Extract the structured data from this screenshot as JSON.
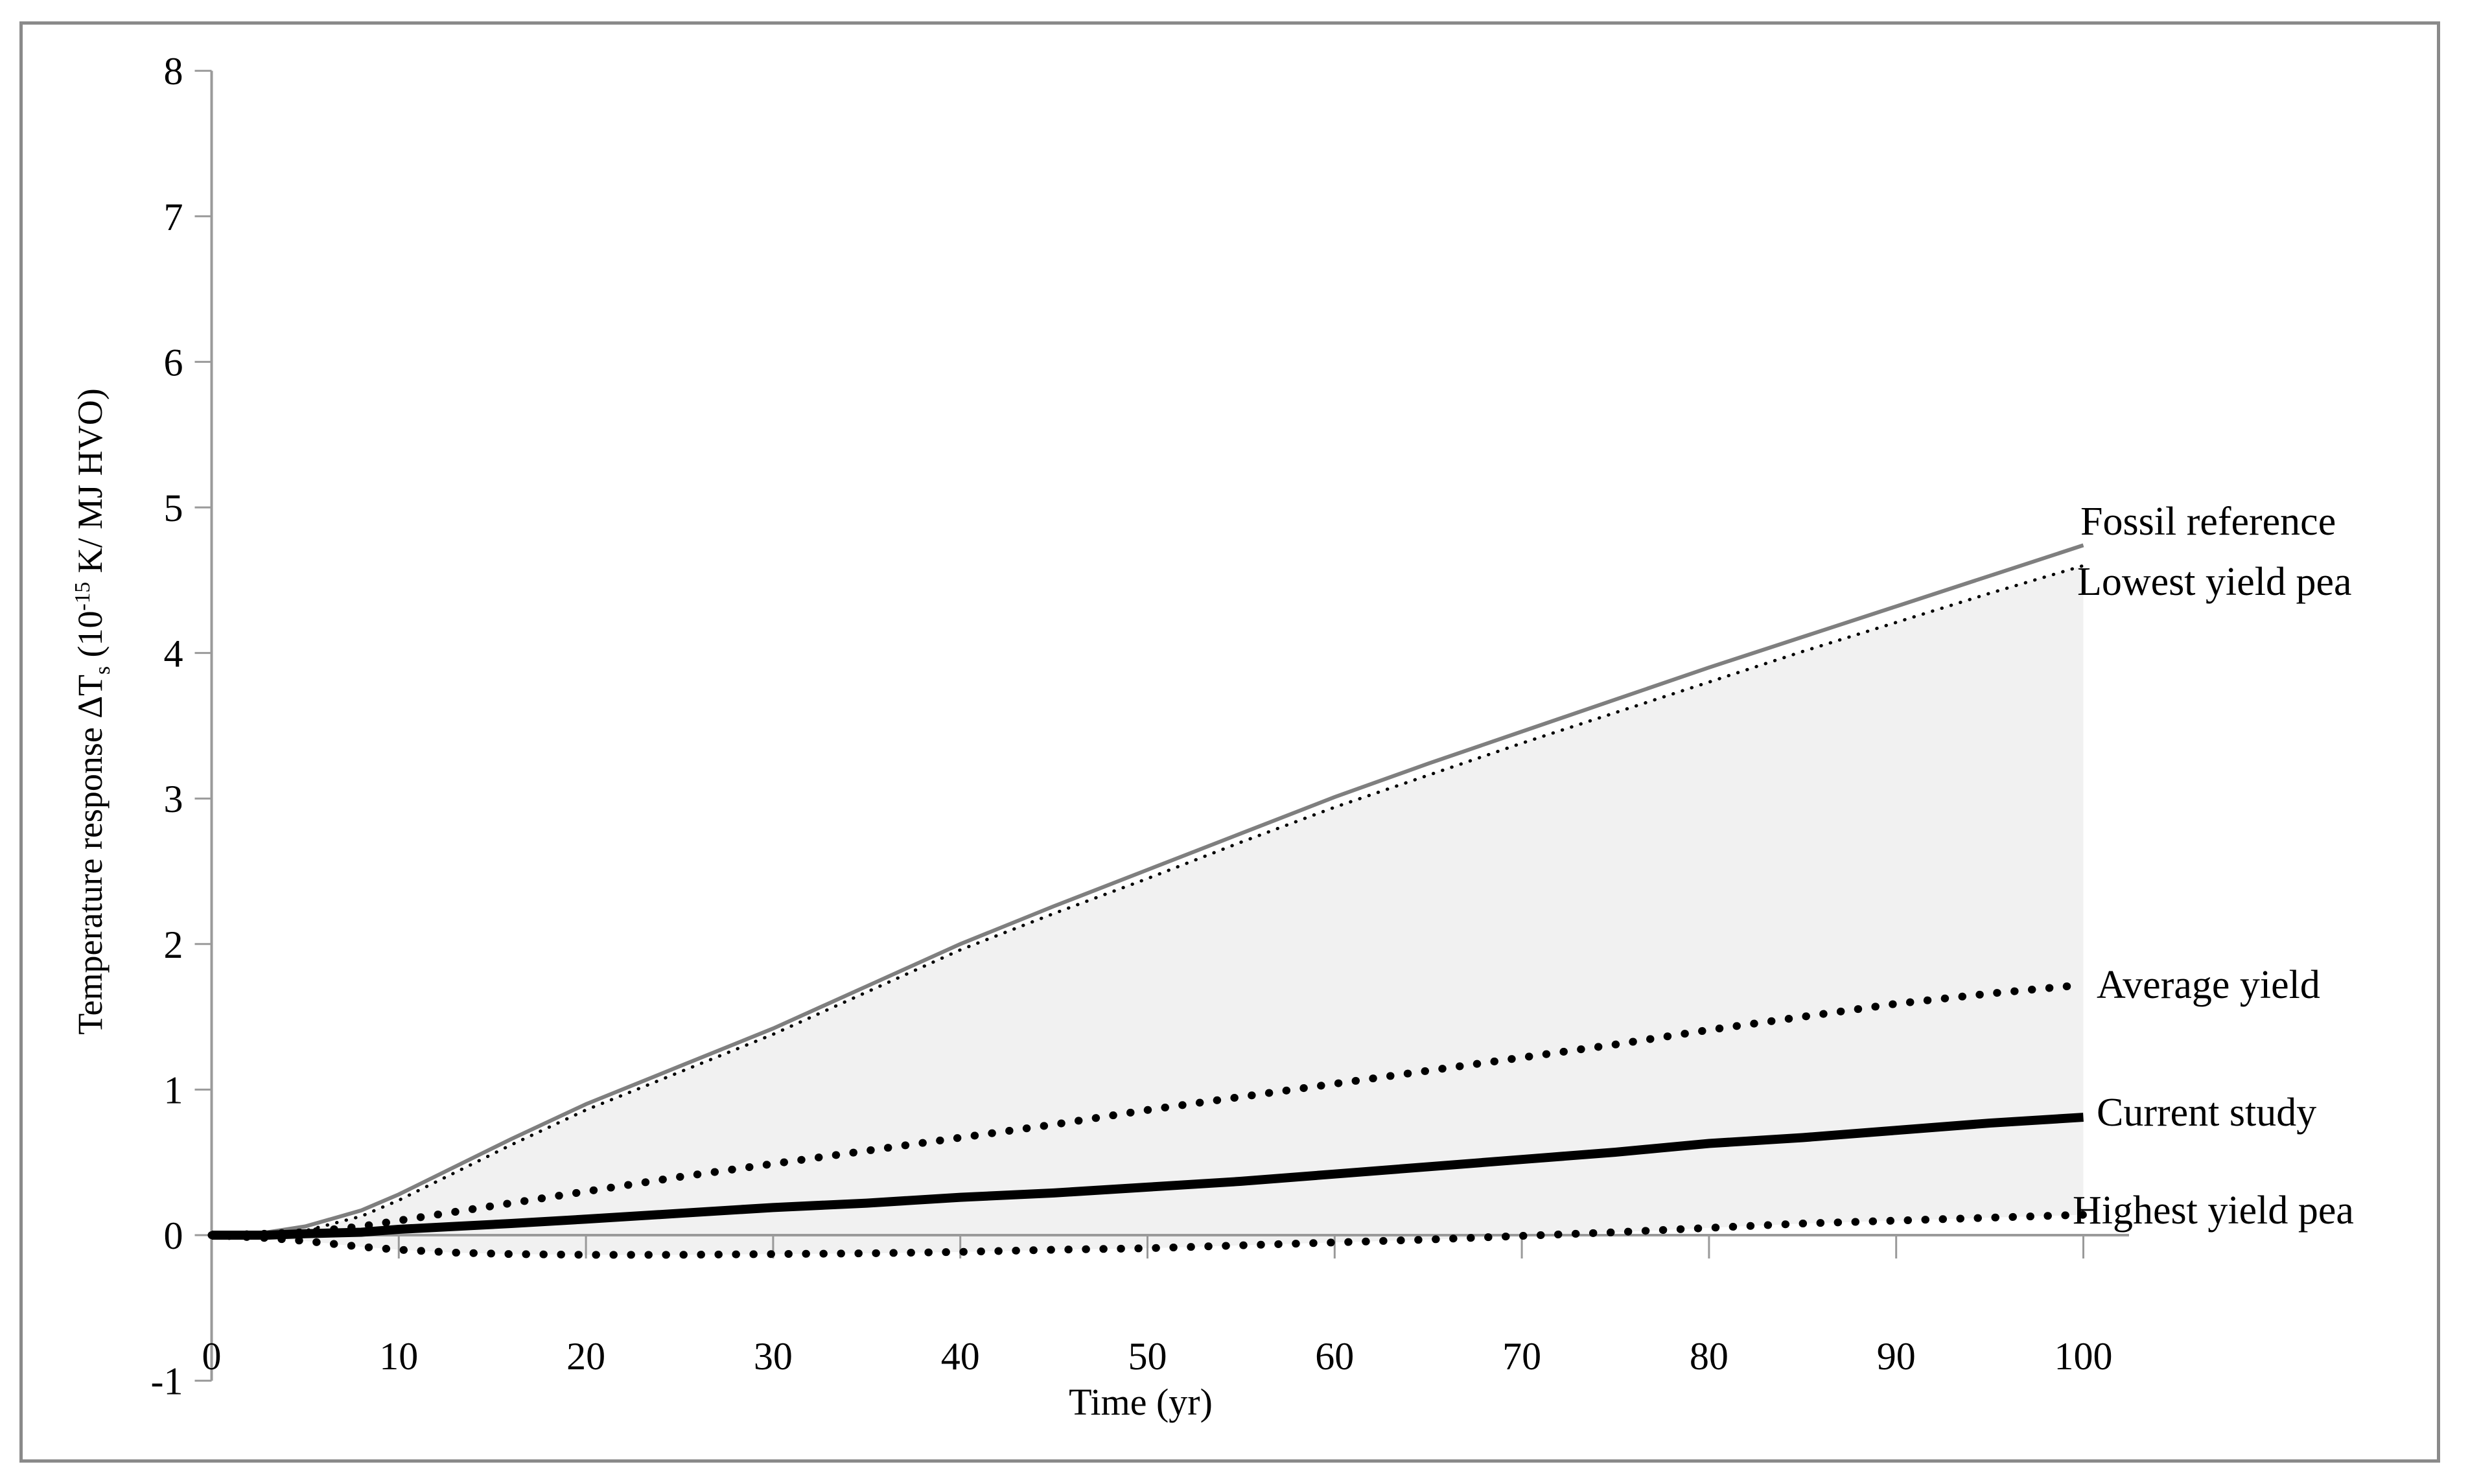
{
  "figure": {
    "border_color": "#8a8a8a",
    "background": "#ffffff"
  },
  "chart_data": {
    "type": "line",
    "title": "",
    "xlabel": "Time (yr)",
    "ylabel": "Temperature response ΔTs (10-15 K/ MJ HVO)",
    "ylabel_parts": {
      "pre": "Temperature response ΔT",
      "sub": "s",
      "mid": " (10",
      "sup": "-15",
      "post": " K/ MJ HVO)"
    },
    "xlim": [
      0,
      100
    ],
    "ylim": [
      -1,
      8
    ],
    "x_ticks": [
      0,
      10,
      20,
      30,
      40,
      50,
      60,
      70,
      80,
      90,
      100
    ],
    "y_ticks": [
      -1,
      0,
      1,
      2,
      3,
      4,
      5,
      6,
      7,
      8
    ],
    "grid": "off",
    "legend_position": "right-end-of-lines",
    "axis_color": "#9a9a9a",
    "shaded_band": {
      "upper": "Lowest yield pea",
      "lower": "Highest yield pea",
      "color": "#f1f1f1"
    },
    "x_common": [
      0,
      3,
      5,
      8,
      10,
      13,
      16,
      20,
      25,
      30,
      35,
      40,
      45,
      50,
      55,
      60,
      65,
      70,
      75,
      80,
      85,
      90,
      95,
      100
    ],
    "series": [
      {
        "name": "Fossil reference",
        "style": "solid",
        "color": "#7f7f7f",
        "width": 6,
        "dash": "solid",
        "x": [
          0,
          3,
          5,
          8,
          10,
          13,
          16,
          20,
          25,
          30,
          35,
          40,
          45,
          50,
          55,
          60,
          65,
          70,
          75,
          80,
          85,
          90,
          95,
          100
        ],
        "y": [
          0,
          0.02,
          0.06,
          0.17,
          0.28,
          0.47,
          0.66,
          0.9,
          1.16,
          1.42,
          1.71,
          2.0,
          2.26,
          2.51,
          2.76,
          3.01,
          3.24,
          3.46,
          3.68,
          3.9,
          4.11,
          4.32,
          4.53,
          4.74
        ]
      },
      {
        "name": "Lowest yield pea",
        "style": "dotted-fine",
        "color": "#000000",
        "width": 5,
        "dash": "dot-fine",
        "x": [
          0,
          3,
          5,
          8,
          10,
          13,
          16,
          20,
          25,
          30,
          35,
          40,
          45,
          50,
          55,
          60,
          65,
          70,
          75,
          80,
          85,
          90,
          95,
          100
        ],
        "y": [
          0,
          0.0,
          0.03,
          0.13,
          0.24,
          0.43,
          0.62,
          0.86,
          1.12,
          1.38,
          1.67,
          1.96,
          2.21,
          2.45,
          2.7,
          2.94,
          3.16,
          3.38,
          3.59,
          3.8,
          4.01,
          4.21,
          4.41,
          4.6
        ]
      },
      {
        "name": "Average yield",
        "style": "dotted",
        "color": "#000000",
        "width": 12,
        "dash": "dot",
        "x": [
          0,
          3,
          5,
          8,
          10,
          13,
          16,
          20,
          25,
          30,
          35,
          40,
          45,
          50,
          55,
          60,
          65,
          70,
          75,
          80,
          85,
          90,
          95,
          100
        ],
        "y": [
          0,
          0.01,
          0.02,
          0.06,
          0.1,
          0.16,
          0.22,
          0.3,
          0.4,
          0.49,
          0.58,
          0.67,
          0.76,
          0.86,
          0.95,
          1.04,
          1.13,
          1.22,
          1.31,
          1.41,
          1.5,
          1.59,
          1.66,
          1.72
        ]
      },
      {
        "name": "Current study",
        "style": "solid-thick",
        "color": "#000000",
        "width": 14,
        "dash": "solid",
        "x": [
          0,
          3,
          5,
          8,
          10,
          13,
          16,
          20,
          25,
          30,
          35,
          40,
          45,
          50,
          55,
          60,
          65,
          70,
          75,
          80,
          85,
          90,
          95,
          100
        ],
        "y": [
          0,
          0.0,
          0.01,
          0.02,
          0.04,
          0.06,
          0.08,
          0.11,
          0.15,
          0.19,
          0.22,
          0.26,
          0.29,
          0.33,
          0.37,
          0.42,
          0.47,
          0.52,
          0.57,
          0.63,
          0.67,
          0.72,
          0.77,
          0.81
        ]
      },
      {
        "name": "Highest yield pea",
        "style": "dotted",
        "color": "#000000",
        "width": 12,
        "dash": "dot",
        "x": [
          0,
          3,
          5,
          8,
          10,
          13,
          16,
          20,
          25,
          30,
          35,
          40,
          45,
          50,
          55,
          60,
          65,
          70,
          75,
          80,
          85,
          90,
          95,
          100
        ],
        "y": [
          0,
          -0.02,
          -0.04,
          -0.08,
          -0.1,
          -0.12,
          -0.13,
          -0.135,
          -0.135,
          -0.13,
          -0.125,
          -0.115,
          -0.1,
          -0.09,
          -0.07,
          -0.05,
          -0.03,
          -0.005,
          0.02,
          0.05,
          0.08,
          0.1,
          0.12,
          0.14
        ]
      }
    ],
    "annotations": [
      {
        "label": "Fossil reference"
      },
      {
        "label": "Lowest yield pea"
      },
      {
        "label": "Average yield"
      },
      {
        "label": "Current study"
      },
      {
        "label": "Highest yield pea"
      }
    ]
  }
}
